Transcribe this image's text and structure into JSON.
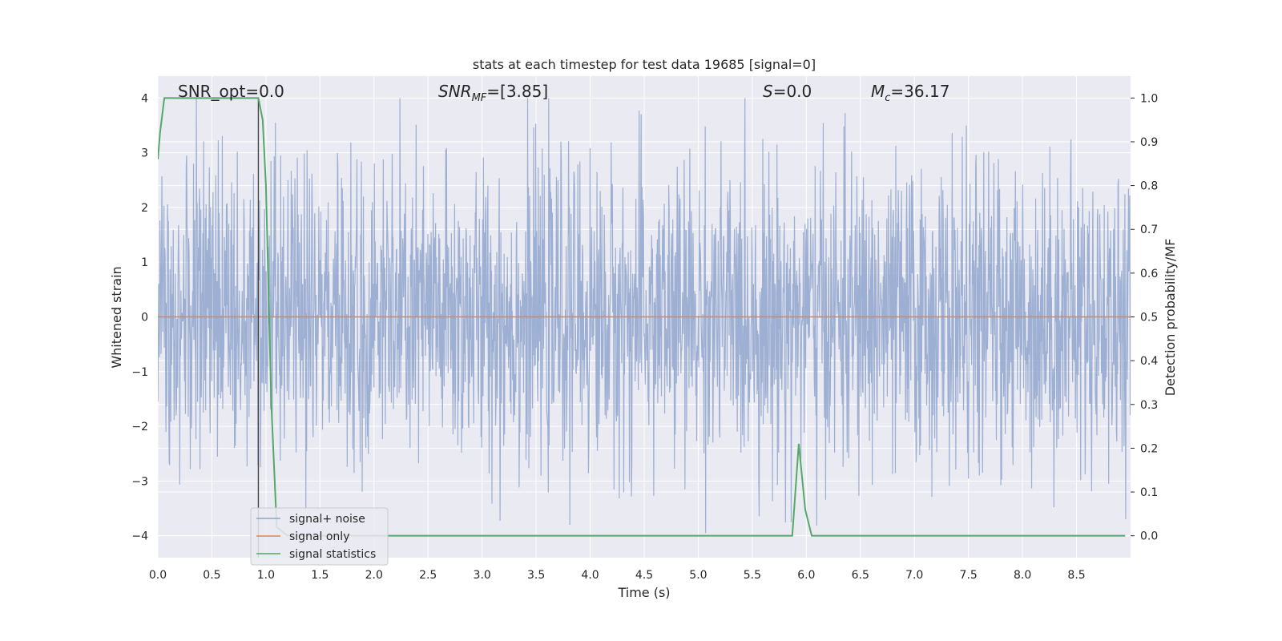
{
  "chart_data": {
    "type": "line",
    "title": "stats at each timestep for test data 19685 [signal=0]",
    "xlabel": "Time (s)",
    "ylabel_left": "Whitened strain",
    "ylabel_right": "Detection probability/MF",
    "xlim": [
      0.0,
      9.0
    ],
    "ylim_left": [
      -4.4,
      4.4
    ],
    "ylim_right": [
      -0.05,
      1.05
    ],
    "x_ticks": [
      "0.0",
      "0.5",
      "1.0",
      "1.5",
      "2.0",
      "2.5",
      "3.0",
      "3.5",
      "4.0",
      "4.5",
      "5.0",
      "5.5",
      "6.0",
      "6.5",
      "7.0",
      "7.5",
      "8.0",
      "8.5"
    ],
    "y_ticks_left": [
      "4",
      "3",
      "2",
      "1",
      "0",
      "−1",
      "−2",
      "−3",
      "−4"
    ],
    "y_ticks_right": [
      "1.0",
      "0.9",
      "0.8",
      "0.7",
      "0.6",
      "0.5",
      "0.4",
      "0.3",
      "0.2",
      "0.1",
      "0.0"
    ],
    "grid": true,
    "legend_position": "lower-left",
    "annotations": {
      "snr_opt": "SNR_opt=0.0",
      "snr_mf_base": "SNR",
      "snr_mf_sub": "MF",
      "snr_mf_value": "=[3.85]",
      "s_label": "S",
      "s_value": "=0.0",
      "mc_base": "M",
      "mc_sub": "c",
      "mc_value": "=36.17"
    },
    "marker_line_x": 0.93,
    "series": [
      {
        "name": "signal+ noise",
        "color": "#8fa4cd",
        "axis": "left",
        "description_values": {
          "typical_amplitude": 1.6,
          "peak_max": 4.0,
          "peak_min": -3.95
        }
      },
      {
        "name": "signal only",
        "color": "#dd8452",
        "axis": "left",
        "x": [
          0.0,
          9.0
        ],
        "y": [
          0.0,
          0.0
        ]
      },
      {
        "name": "signal statistics",
        "color": "#55a868",
        "axis": "right",
        "x": [
          0.0,
          0.02,
          0.06,
          0.1,
          0.2,
          0.5,
          0.8,
          0.93,
          0.97,
          1.0,
          1.05,
          1.1,
          1.2,
          2.0,
          3.0,
          4.0,
          5.0,
          5.5,
          5.87,
          5.93,
          5.99,
          6.05,
          6.5,
          7.0,
          8.0,
          8.95
        ],
        "y": [
          0.86,
          0.92,
          1.0,
          1.0,
          1.0,
          1.0,
          1.0,
          1.0,
          0.95,
          0.8,
          0.3,
          0.02,
          0.0,
          0.0,
          0.0,
          0.0,
          0.0,
          0.0,
          0.0,
          0.21,
          0.06,
          0.0,
          0.0,
          0.0,
          0.0,
          0.0
        ]
      }
    ]
  },
  "colors": {
    "plot_bg": "#eaeaf2",
    "grid": "#ffffff",
    "noise": "#8fa4cd",
    "signal": "#dd8452",
    "stats": "#55a868",
    "marker": "#444444"
  }
}
